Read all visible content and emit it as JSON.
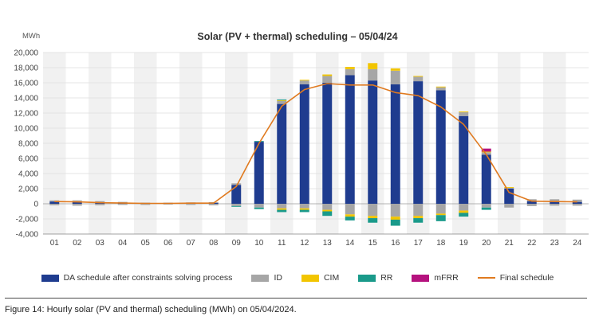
{
  "chart_data": {
    "type": "bar",
    "title": "Solar (PV + thermal) scheduling – 05/04/24",
    "ylabel": "MWh",
    "xlabel": "",
    "ylim": [
      -4000,
      20000
    ],
    "yticks": [
      "20,000",
      "18,000",
      "16,000",
      "14,000",
      "12,000",
      "10,000",
      "8,000",
      "6,000",
      "4,000",
      "2,000",
      "0",
      "-2,000",
      "-4,000"
    ],
    "ytick_values": [
      20000,
      18000,
      16000,
      14000,
      12000,
      10000,
      8000,
      6000,
      4000,
      2000,
      0,
      -2000,
      -4000
    ],
    "categories": [
      "01",
      "02",
      "03",
      "04",
      "05",
      "06",
      "07",
      "08",
      "09",
      "10",
      "11",
      "12",
      "13",
      "14",
      "15",
      "16",
      "17",
      "18",
      "19",
      "20",
      "21",
      "22",
      "23",
      "24"
    ],
    "series": [
      {
        "name": "DA schedule after constraints solving process",
        "color": "#1f3c8f",
        "values": [
          300,
          250,
          150,
          100,
          50,
          50,
          80,
          120,
          2500,
          8200,
          13200,
          15800,
          16000,
          17000,
          16300,
          15800,
          16200,
          15000,
          11600,
          6500,
          2000,
          350,
          300,
          250
        ]
      },
      {
        "name": "ID",
        "color": "#a6a6a6",
        "pos": [
          150,
          200,
          200,
          150,
          100,
          100,
          100,
          100,
          200,
          0,
          400,
          500,
          900,
          800,
          1500,
          1800,
          600,
          400,
          500,
          300,
          100,
          250,
          300,
          300
        ],
        "neg": [
          -200,
          -250,
          -200,
          -150,
          -150,
          -100,
          -150,
          -200,
          -300,
          -500,
          -600,
          -600,
          -800,
          -1400,
          -1600,
          -1700,
          -1600,
          -1300,
          -900,
          -500,
          -500,
          -300,
          -250,
          -250
        ]
      },
      {
        "name": "CIM",
        "color": "#f2c500",
        "pos": [
          0,
          0,
          0,
          0,
          0,
          0,
          0,
          0,
          0,
          0,
          100,
          100,
          200,
          300,
          800,
          300,
          100,
          100,
          100,
          100,
          100,
          0,
          0,
          0
        ],
        "neg": [
          0,
          0,
          0,
          0,
          0,
          0,
          0,
          0,
          0,
          0,
          -200,
          -200,
          -200,
          -300,
          -300,
          -400,
          -300,
          -200,
          -300,
          0,
          0,
          0,
          0,
          0
        ]
      },
      {
        "name": "RR",
        "color": "#1a9a8a",
        "pos": [
          0,
          0,
          0,
          0,
          0,
          0,
          0,
          0,
          0,
          100,
          100,
          0,
          0,
          0,
          0,
          0,
          0,
          0,
          0,
          0,
          0,
          0,
          0,
          0
        ],
        "neg": [
          0,
          0,
          0,
          0,
          0,
          0,
          0,
          0,
          -100,
          -200,
          -300,
          -300,
          -600,
          -500,
          -600,
          -800,
          -600,
          -800,
          -500,
          -300,
          0,
          0,
          0,
          0
        ]
      },
      {
        "name": "mFRR",
        "color": "#b5127e",
        "pos": [
          0,
          0,
          0,
          0,
          0,
          0,
          0,
          0,
          0,
          0,
          0,
          0,
          0,
          0,
          0,
          0,
          0,
          0,
          0,
          400,
          0,
          0,
          0,
          0
        ],
        "neg": [
          0,
          0,
          0,
          0,
          0,
          0,
          0,
          0,
          0,
          0,
          0,
          0,
          0,
          0,
          0,
          0,
          0,
          0,
          0,
          0,
          0,
          0,
          0,
          0
        ]
      },
      {
        "name": "Final schedule",
        "color": "#e07a1f",
        "kind": "line",
        "values": [
          300,
          250,
          150,
          100,
          50,
          50,
          80,
          100,
          2300,
          8000,
          12900,
          15100,
          15900,
          15700,
          15700,
          14700,
          14300,
          12800,
          10500,
          6500,
          1500,
          350,
          300,
          250
        ]
      }
    ]
  },
  "caption": "Figure 14: Hourly solar (PV and thermal) scheduling (MWh) on 05/04/2024.",
  "legend": [
    {
      "label": "DA schedule after constraints solving process",
      "color": "#1f3c8f",
      "kind": "box"
    },
    {
      "label": "ID",
      "color": "#a6a6a6",
      "kind": "box"
    },
    {
      "label": "CIM",
      "color": "#f2c500",
      "kind": "box"
    },
    {
      "label": "RR",
      "color": "#1a9a8a",
      "kind": "box"
    },
    {
      "label": "mFRR",
      "color": "#b5127e",
      "kind": "box"
    },
    {
      "label": "Final schedule",
      "color": "#e07a1f",
      "kind": "line"
    }
  ]
}
